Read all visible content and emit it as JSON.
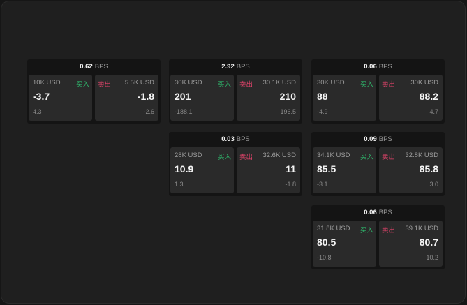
{
  "unit": "BPS",
  "buy_label": "买入",
  "sell_label": "卖出",
  "colors": {
    "buy": "#2fb36a",
    "sell": "#e0436a",
    "background": "#1f1f1f"
  },
  "widgets": [
    {
      "spread": "0.62",
      "buy": {
        "qty": "10K USD",
        "price": "-3.7",
        "change": "4.3"
      },
      "sell": {
        "qty": "5.5K USD",
        "price": "-1.8",
        "change": "-2.6"
      }
    },
    {
      "spread": "2.92",
      "buy": {
        "qty": "30K USD",
        "price": "201",
        "change": "-188.1"
      },
      "sell": {
        "qty": "30.1K USD",
        "price": "210",
        "change": "196.5"
      }
    },
    {
      "spread": "0.06",
      "buy": {
        "qty": "30K USD",
        "price": "88",
        "change": "-4.9"
      },
      "sell": {
        "qty": "30K USD",
        "price": "88.2",
        "change": "4.7"
      }
    },
    {
      "spread": "0.03",
      "buy": {
        "qty": "28K USD",
        "price": "10.9",
        "change": "1.3"
      },
      "sell": {
        "qty": "32.6K USD",
        "price": "11",
        "change": "-1.8"
      }
    },
    {
      "spread": "0.09",
      "buy": {
        "qty": "34.1K USD",
        "price": "85.5",
        "change": "-3.1"
      },
      "sell": {
        "qty": "32.8K USD",
        "price": "85.8",
        "change": "3.0"
      }
    },
    {
      "spread": "0.06",
      "buy": {
        "qty": "31.8K USD",
        "price": "80.5",
        "change": "-10.8"
      },
      "sell": {
        "qty": "39.1K USD",
        "price": "80.7",
        "change": "10.2"
      }
    }
  ]
}
